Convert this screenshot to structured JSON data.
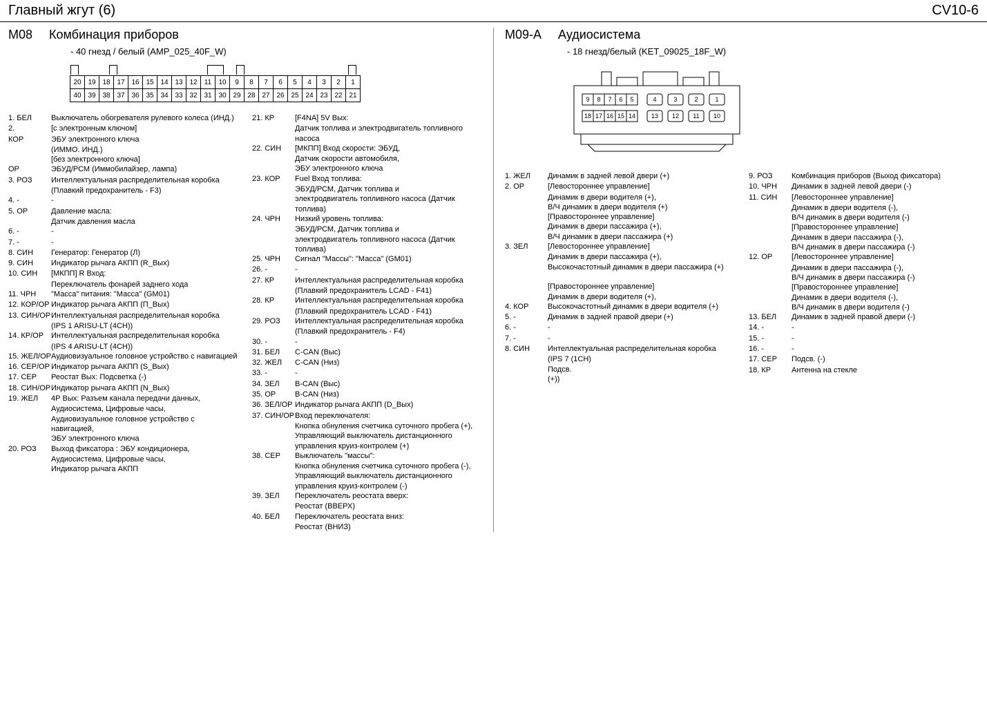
{
  "header": {
    "left": "Главный жгут (6)",
    "right": "CV10-6"
  },
  "m08": {
    "id": "M08",
    "title": "Комбинация приборов",
    "sub": "- 40 гнезд / белый (AMP_025_40F_W)",
    "row1": [
      "20",
      "19",
      "18",
      "17",
      "16",
      "15",
      "14",
      "13",
      "12",
      "11",
      "10",
      "9",
      "8",
      "7",
      "6",
      "5",
      "4",
      "3",
      "2",
      "1"
    ],
    "row2": [
      "40",
      "39",
      "38",
      "37",
      "36",
      "35",
      "34",
      "33",
      "32",
      "31",
      "30",
      "29",
      "28",
      "27",
      "26",
      "25",
      "24",
      "23",
      "22",
      "21"
    ],
    "left_pins": [
      {
        "n": "1. БЕЛ",
        "d": "Выключатель обогревателя рулевого колеса (ИНД.)"
      },
      {
        "n": "2.",
        "d": "[с электронным ключом]"
      },
      {
        "n": "    КОР",
        "d": "ЭБУ электронного ключа"
      },
      {
        "n": "",
        "d": "(ИММО. ИНД.)"
      },
      {
        "n": "",
        "d": "[без электронного ключа]"
      },
      {
        "n": "    ОР",
        "d": "ЭБУД/РСМ (Иммобилайзер, лампа)"
      },
      {
        "n": "3. РОЗ",
        "d": "Интеллектуальная распределительная коробка"
      },
      {
        "n": "",
        "d": "(Плавкий предохранитель - F3)"
      },
      {
        "n": "4. -",
        "d": "-"
      },
      {
        "n": "5. ОР",
        "d": "Давление масла:"
      },
      {
        "n": "",
        "d": "Датчик давления масла"
      },
      {
        "n": "6. -",
        "d": "-"
      },
      {
        "n": "7. -",
        "d": "-"
      },
      {
        "n": "8. СИН",
        "d": "Генератор: Генератор (Л)"
      },
      {
        "n": "9. СИН",
        "d": "Индикатор рычага АКПП (R_Вых)"
      },
      {
        "n": "10. СИН",
        "d": "[МКПП] R Вход:"
      },
      {
        "n": "",
        "d": "Переключатель фонарей заднего хода"
      },
      {
        "n": "11. ЧРН",
        "d": "\"Масса\" питания: \"Масса\" (GM01)"
      },
      {
        "n": "12. КОР/ОР",
        "d": "Индикатор рычага АКПП (П_Вых)"
      },
      {
        "n": "13. СИН/ОР",
        "d": "Интеллектуальная распределительная коробка"
      },
      {
        "n": "",
        "d": "(IPS 1 ARISU-LT (4CH))"
      },
      {
        "n": "14. КР/ОР",
        "d": "Интеллектуальная распределительная коробка"
      },
      {
        "n": "",
        "d": "(IPS 4 ARISU-LT (4CH))"
      },
      {
        "n": "15. ЖЕЛ/ОР",
        "d": "Аудиовизуальное головное устройство с навигацией"
      },
      {
        "n": "16. СЕР/ОР",
        "d": "Индикатор рычага АКПП (S_Вых)"
      },
      {
        "n": "17. СЕР",
        "d": "Реостат Вых: Подсветка (-)"
      },
      {
        "n": "18. СИН/ОР",
        "d": "Индикатор рычага АКПП (N_Вых)"
      },
      {
        "n": "19. ЖЕЛ",
        "d": "4Р Вых: Разъем канала передачи данных,"
      },
      {
        "n": "",
        "d": "Аудиосистема, Цифровые часы,"
      },
      {
        "n": "",
        "d": "Аудиовизуальное головное устройство с навигацией,"
      },
      {
        "n": "",
        "d": "ЭБУ электронного ключа"
      },
      {
        "n": "20. РОЗ",
        "d": "Выход фиксатора : ЭБУ кондиционера,"
      },
      {
        "n": "",
        "d": "Аудиосистема, Цифровые часы,"
      },
      {
        "n": "",
        "d": "Индикатор рычага АКПП"
      }
    ],
    "right_pins": [
      {
        "n": "21. КР",
        "d": "[F4NA] 5V Вых:"
      },
      {
        "n": "",
        "d": "Датчик топлива и электродвигатель топливного насоса"
      },
      {
        "n": "22. СИН",
        "d": "[МКПП] Вход скорости: ЭБУД,"
      },
      {
        "n": "",
        "d": "Датчик скорости автомобиля,"
      },
      {
        "n": "",
        "d": "ЭБУ электронного ключа"
      },
      {
        "n": "23. КОР",
        "d": "Fuel Вход топлива:"
      },
      {
        "n": "",
        "d": "ЭБУД/РСМ, Датчик топлива и"
      },
      {
        "n": "",
        "d": "электродвигатель топливного насоса (Датчик топлива)"
      },
      {
        "n": "24. ЧРН",
        "d": "Низкий уровень топлива:"
      },
      {
        "n": "",
        "d": "ЭБУД/РСМ, Датчик топлива и"
      },
      {
        "n": "",
        "d": "электродвигатель топливного насоса (Датчик топлива)"
      },
      {
        "n": "25. ЧРН",
        "d": "Сигнал \"Массы\": \"Масса\" (GM01)"
      },
      {
        "n": "26. -",
        "d": "-"
      },
      {
        "n": "27. КР",
        "d": "Интеллектуальная распределительная коробка"
      },
      {
        "n": "",
        "d": "(Плавкий предохранитель LCAD - F41)"
      },
      {
        "n": "28. КР",
        "d": "Интеллектуальная распределительная коробка"
      },
      {
        "n": "",
        "d": "(Плавкий предохранитель LCAD - F41)"
      },
      {
        "n": "29. РОЗ",
        "d": "Интеллектуальная распределительная коробка"
      },
      {
        "n": "",
        "d": "(Плавкий предохранитель - F4)"
      },
      {
        "n": "30. -",
        "d": "-"
      },
      {
        "n": "31. БЕЛ",
        "d": "C-CAN (Выс)"
      },
      {
        "n": "32. ЖЕЛ",
        "d": "C-CAN (Низ)"
      },
      {
        "n": "33. -",
        "d": "-"
      },
      {
        "n": "34. ЗЕЛ",
        "d": "B-CAN (Выс)"
      },
      {
        "n": "35. ОР",
        "d": "B-CAN (Низ)"
      },
      {
        "n": "36. ЗЕЛ/ОР",
        "d": "Индикатор рычага АКПП (D_Вых)"
      },
      {
        "n": "37. СИН/ОР",
        "d": "Вход переключателя:"
      },
      {
        "n": "",
        "d": "Кнопка обнуления счетчика суточного пробега (+),"
      },
      {
        "n": "",
        "d": "Управляющий выключатель дистанционного"
      },
      {
        "n": "",
        "d": "управления круиз-контролем (+)"
      },
      {
        "n": "38. СЕР",
        "d": "Выключатель \"массы\":"
      },
      {
        "n": "",
        "d": "Кнопка обнуления счетчика суточного пробега (-),"
      },
      {
        "n": "",
        "d": "Управляющий выключатель дистанционного"
      },
      {
        "n": "",
        "d": "управления круиз-контролем (-)"
      },
      {
        "n": "39. ЗЕЛ",
        "d": "Переключатель реостата вверх:"
      },
      {
        "n": "",
        "d": "Реостат (ВВЕРХ)"
      },
      {
        "n": "40. БЕЛ",
        "d": "Переключатель реостата вниз:"
      },
      {
        "n": "",
        "d": "Реостат (ВНИЗ)"
      }
    ]
  },
  "m09a": {
    "id": "M09-A",
    "title": "Аудиосистема",
    "sub": "- 18 гнезд/белый (KET_09025_18F_W)",
    "row1_labels": [
      "9",
      "8",
      "7",
      "6",
      "5",
      "4",
      "3",
      "2",
      "1"
    ],
    "row2_labels": [
      "18",
      "17",
      "16",
      "15",
      "14",
      "13",
      "12",
      "11",
      "10"
    ],
    "left_pins": [
      {
        "n": "1. ЖЕЛ",
        "d": "Динамик в задней левой двери (+)"
      },
      {
        "n": "2. ОР",
        "d": "[Левостороннее управление]"
      },
      {
        "n": "",
        "d": "Динамик в двери водителя (+),"
      },
      {
        "n": "",
        "d": "В/Ч динамик в двери водителя (+)"
      },
      {
        "n": "",
        "d": "[Правостороннее управление]"
      },
      {
        "n": "",
        "d": "Динамик в двери пассажира (+),"
      },
      {
        "n": "",
        "d": "В/Ч динамик в двери пассажира (+)"
      },
      {
        "n": "3. ЗЕЛ",
        "d": "[Левостороннее управление]"
      },
      {
        "n": "",
        "d": "Динамик в двери пассажира (+),"
      },
      {
        "n": "",
        "d": "Высокочастотный динамик в двери пассажира (+)"
      },
      {
        "n": "",
        "d": ""
      },
      {
        "n": "",
        "d": "[Правостороннее управление]"
      },
      {
        "n": "",
        "d": "Динамик в двери водителя (+),"
      },
      {
        "n": "4. КОР",
        "d": "Высокочастотный динамик в двери водителя (+)"
      },
      {
        "n": "5. -",
        "d": "Динамик в задней правой двери (+)"
      },
      {
        "n": "6. -",
        "d": "-"
      },
      {
        "n": "7. -",
        "d": "-"
      },
      {
        "n": "8. СИН",
        "d": "Интеллектуальная распределительная коробка"
      },
      {
        "n": "",
        "d": "(IPS 7 (1CH)"
      },
      {
        "n": "",
        "d": "Подсв."
      },
      {
        "n": "",
        "d": "(+))"
      }
    ],
    "right_pins": [
      {
        "n": "9. РОЗ",
        "d": "Комбинация приборов (Выход фиксатора)"
      },
      {
        "n": "10. ЧРН",
        "d": "Динамик в задней левой двери (-)"
      },
      {
        "n": "11. СИН",
        "d": "[Левостороннее управление]"
      },
      {
        "n": "",
        "d": "Динамик в двери водителя (-),"
      },
      {
        "n": "",
        "d": "В/Ч динамик в двери водителя (-)"
      },
      {
        "n": "",
        "d": "[Правостороннее управление]"
      },
      {
        "n": "",
        "d": "Динамик в двери пассажира (-),"
      },
      {
        "n": "",
        "d": "В/Ч динамик в двери пассажира (-)"
      },
      {
        "n": "12. ОР",
        "d": "[Левостороннее управление]"
      },
      {
        "n": "",
        "d": "Динамик в двери пассажира (-),"
      },
      {
        "n": "",
        "d": "В/Ч динамик в двери пассажира (-)"
      },
      {
        "n": "",
        "d": "[Правостороннее управление]"
      },
      {
        "n": "",
        "d": "Динамик в двери водителя (-),"
      },
      {
        "n": "",
        "d": "В/Ч динамик в двери водителя (-)"
      },
      {
        "n": "13. БЕЛ",
        "d": "Динамик в задней правой двери (-)"
      },
      {
        "n": "14. -",
        "d": "-"
      },
      {
        "n": "15. -",
        "d": "-"
      },
      {
        "n": "16. -",
        "d": "-"
      },
      {
        "n": "17. СЕР",
        "d": "Подсв. (-)"
      },
      {
        "n": "18. КР",
        "d": "Антенна на стекле"
      }
    ]
  }
}
